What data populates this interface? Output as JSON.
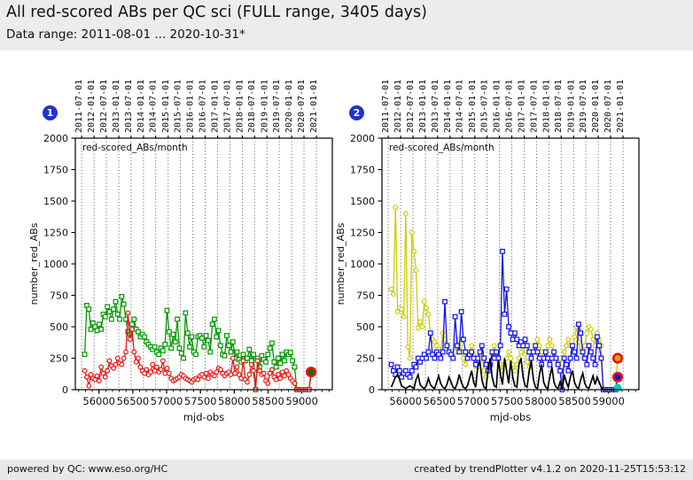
{
  "header": {
    "title": "All red-scored ABs per QC sci (FULL range, 3405 days)",
    "subtitle": "Data range: 2011-08-01 ... 2020-10-31*"
  },
  "footer": {
    "left": "powered by QC: www.eso.org/HC",
    "right": "created by trendPlotter v4.1.2 on 2020-11-25T15:53:12"
  },
  "colors": {
    "badge": "#2233cc",
    "grid": "#444444",
    "green": "#009900",
    "red": "#ee1111",
    "yellow": "#cccc00",
    "blue": "#1111ee",
    "black": "#000000",
    "cyan": "#00cccc"
  },
  "chart_data": [
    {
      "type": "line",
      "badge": "1",
      "legend": "red-scored_ABs/month",
      "xlabel": "mjd-obs",
      "ylabel": "number_red_ABs",
      "xlim": [
        55650,
        59450
      ],
      "ylim": [
        0,
        2000
      ],
      "x_ticks": [
        56000,
        56500,
        57000,
        57500,
        58000,
        58500,
        59000
      ],
      "x_minor_step": 100,
      "y_ticks": [
        0,
        250,
        500,
        750,
        1000,
        1250,
        1500,
        1750,
        2000
      ],
      "grid": "vertical-dotted-at-date-ticks",
      "legend_position": "top-left-inside",
      "date_ticks": {
        "mjd": [
          55743,
          55927,
          56109,
          56293,
          56474,
          56658,
          56839,
          57023,
          57204,
          57388,
          57570,
          57754,
          57935,
          58119,
          58300,
          58484,
          58665,
          58849,
          59031,
          59215
        ],
        "labels": [
          "2011-07-01",
          "2012-01-01",
          "2012-07-01",
          "2013-01-01",
          "2013-07-01",
          "2014-01-01",
          "2014-07-01",
          "2015-01-01",
          "2015-07-01",
          "2016-01-01",
          "2016-07-01",
          "2017-01-01",
          "2017-07-01",
          "2018-01-01",
          "2018-07-01",
          "2019-01-01",
          "2019-07-01",
          "2020-01-01",
          "2020-07-01",
          "2021-01-01"
        ]
      },
      "x": [
        55789,
        55819,
        55850,
        55880,
        55911,
        55941,
        55972,
        56002,
        56032,
        56063,
        56093,
        56124,
        56154,
        56185,
        56215,
        56246,
        56276,
        56306,
        56337,
        56367,
        56398,
        56428,
        56459,
        56489,
        56519,
        56550,
        56580,
        56611,
        56641,
        56672,
        56702,
        56732,
        56763,
        56793,
        56824,
        56854,
        56885,
        56915,
        56945,
        56976,
        57006,
        57037,
        57067,
        57098,
        57128,
        57158,
        57189,
        57219,
        57250,
        57280,
        57311,
        57341,
        57371,
        57402,
        57432,
        57463,
        57493,
        57524,
        57554,
        57584,
        57615,
        57645,
        57676,
        57706,
        57737,
        57767,
        57797,
        57828,
        57858,
        57889,
        57919,
        57950,
        57980,
        58010,
        58041,
        58071,
        58102,
        58132,
        58163,
        58193,
        58223,
        58254,
        58284,
        58315,
        58345,
        58376,
        58406,
        58436,
        58467,
        58497,
        58528,
        58558,
        58589,
        58619,
        58649,
        58680,
        58710,
        58741,
        58771,
        58802,
        58832,
        58862,
        58893,
        58923,
        58954,
        58984,
        59014,
        59045,
        59075,
        59106,
        59136
      ],
      "series": [
        {
          "name": "green",
          "color": "#009900",
          "marker": "square",
          "values": [
            280,
            670,
            640,
            480,
            530,
            500,
            470,
            520,
            480,
            600,
            580,
            660,
            620,
            560,
            640,
            700,
            600,
            560,
            740,
            680,
            560,
            460,
            440,
            520,
            560,
            480,
            460,
            420,
            440,
            420,
            380,
            360,
            340,
            320,
            340,
            300,
            280,
            330,
            310,
            360,
            630,
            460,
            330,
            440,
            380,
            560,
            330,
            290,
            250,
            610,
            450,
            340,
            420,
            300,
            280,
            420,
            430,
            410,
            340,
            430,
            390,
            300,
            520,
            560,
            420,
            470,
            350,
            280,
            270,
            430,
            350,
            300,
            380,
            250,
            300,
            240,
            220,
            280,
            230,
            250,
            320,
            230,
            280,
            0,
            250,
            180,
            270,
            240,
            220,
            280,
            330,
            370,
            220,
            180,
            250,
            210,
            280,
            230,
            300,
            280,
            295,
            230,
            180,
            0,
            0,
            0,
            0,
            0,
            0,
            0,
            140
          ]
        },
        {
          "name": "red",
          "color": "#ee1111",
          "marker": "circle",
          "values": [
            150,
            100,
            30,
            120,
            90,
            80,
            110,
            70,
            180,
            130,
            100,
            150,
            230,
            190,
            170,
            200,
            250,
            210,
            200,
            250,
            300,
            610,
            400,
            480,
            300,
            220,
            250,
            180,
            150,
            130,
            160,
            120,
            140,
            200,
            150,
            180,
            140,
            160,
            230,
            130,
            170,
            130,
            90,
            70,
            80,
            90,
            100,
            120,
            110,
            90,
            80,
            70,
            60,
            80,
            90,
            80,
            110,
            120,
            100,
            130,
            90,
            140,
            120,
            110,
            140,
            170,
            160,
            130,
            110,
            130,
            140,
            120,
            250,
            130,
            180,
            120,
            90,
            230,
            80,
            60,
            120,
            200,
            150,
            0,
            230,
            150,
            120,
            130,
            70,
            50,
            130,
            160,
            100,
            80,
            120,
            90,
            140,
            110,
            150,
            120,
            90,
            70,
            50,
            0,
            0,
            0,
            0,
            0,
            0,
            0,
            120
          ]
        }
      ],
      "end_markers": [
        {
          "x": 59136,
          "y": 140,
          "fill": "#007700",
          "ring": "#ee1111",
          "r": 4.8
        }
      ]
    },
    {
      "type": "line",
      "badge": "2",
      "legend": "red-scored_ABs/month",
      "xlabel": "mjd-obs",
      "ylabel": "number_red_ABs",
      "xlim": [
        55650,
        59450
      ],
      "ylim": [
        0,
        2000
      ],
      "x_ticks": [
        56000,
        56500,
        57000,
        57500,
        58000,
        58500,
        59000
      ],
      "x_minor_step": 100,
      "y_ticks": [
        0,
        250,
        500,
        750,
        1000,
        1250,
        1500,
        1750,
        2000
      ],
      "grid": "vertical-dotted-at-date-ticks",
      "legend_position": "top-left-inside",
      "date_ticks": {
        "mjd": [
          55743,
          55927,
          56109,
          56293,
          56474,
          56658,
          56839,
          57023,
          57204,
          57388,
          57570,
          57754,
          57935,
          58119,
          58300,
          58484,
          58665,
          58849,
          59031,
          59215
        ],
        "labels": [
          "2011-07-01",
          "2012-01-01",
          "2012-07-01",
          "2013-01-01",
          "2013-07-01",
          "2014-01-01",
          "2014-07-01",
          "2015-01-01",
          "2015-07-01",
          "2016-01-01",
          "2016-07-01",
          "2017-01-01",
          "2017-07-01",
          "2018-01-01",
          "2018-07-01",
          "2019-01-01",
          "2019-07-01",
          "2020-01-01",
          "2020-07-01",
          "2021-01-01"
        ]
      },
      "x": [
        55789,
        55819,
        55850,
        55880,
        55911,
        55941,
        55972,
        56002,
        56032,
        56063,
        56093,
        56124,
        56154,
        56185,
        56215,
        56246,
        56276,
        56306,
        56337,
        56367,
        56398,
        56428,
        56459,
        56489,
        56519,
        56550,
        56580,
        56611,
        56641,
        56672,
        56702,
        56732,
        56763,
        56793,
        56824,
        56854,
        56885,
        56915,
        56945,
        56976,
        57006,
        57037,
        57067,
        57098,
        57128,
        57158,
        57189,
        57219,
        57250,
        57280,
        57311,
        57341,
        57371,
        57402,
        57432,
        57463,
        57493,
        57524,
        57554,
        57584,
        57615,
        57645,
        57676,
        57706,
        57737,
        57767,
        57797,
        57828,
        57858,
        57889,
        57919,
        57950,
        57980,
        58010,
        58041,
        58071,
        58102,
        58132,
        58163,
        58193,
        58223,
        58254,
        58284,
        58315,
        58345,
        58376,
        58406,
        58436,
        58467,
        58497,
        58528,
        58558,
        58589,
        58619,
        58649,
        58680,
        58710,
        58741,
        58771,
        58802,
        58832,
        58862,
        58893,
        58923,
        58954,
        58984,
        59014,
        59045,
        59075,
        59106,
        59136
      ],
      "series": [
        {
          "name": "yellow",
          "color": "#cccc00",
          "marker": "circle",
          "values": [
            800,
            760,
            1450,
            620,
            650,
            640,
            580,
            1400,
            340,
            250,
            1250,
            1100,
            950,
            490,
            540,
            500,
            700,
            650,
            600,
            450,
            400,
            380,
            350,
            320,
            300,
            450,
            400,
            350,
            300,
            280,
            250,
            300,
            350,
            400,
            300,
            250,
            200,
            250,
            300,
            350,
            280,
            220,
            180,
            250,
            300,
            150,
            100,
            150,
            200,
            280,
            350,
            300,
            250,
            200,
            150,
            200,
            250,
            300,
            250,
            200,
            150,
            200,
            250,
            300,
            350,
            280,
            220,
            180,
            250,
            300,
            350,
            400,
            350,
            300,
            250,
            300,
            350,
            400,
            350,
            300,
            250,
            200,
            250,
            0,
            300,
            350,
            400,
            350,
            300,
            420,
            500,
            380,
            300,
            250,
            350,
            450,
            500,
            480,
            400,
            350,
            450,
            400,
            350,
            0,
            0,
            0,
            0,
            0,
            0,
            0,
            250
          ]
        },
        {
          "name": "blue",
          "color": "#1111ee",
          "marker": "square",
          "values": [
            200,
            150,
            120,
            180,
            150,
            100,
            130,
            150,
            120,
            100,
            150,
            200,
            180,
            250,
            220,
            250,
            280,
            250,
            300,
            450,
            280,
            250,
            300,
            280,
            250,
            300,
            700,
            350,
            300,
            280,
            250,
            580,
            350,
            300,
            620,
            400,
            300,
            250,
            280,
            300,
            250,
            200,
            250,
            300,
            350,
            250,
            200,
            150,
            200,
            300,
            250,
            300,
            250,
            350,
            1100,
            600,
            800,
            500,
            450,
            400,
            450,
            400,
            350,
            380,
            350,
            400,
            350,
            300,
            250,
            300,
            350,
            300,
            250,
            200,
            250,
            300,
            250,
            200,
            250,
            300,
            250,
            200,
            150,
            0,
            250,
            200,
            150,
            250,
            350,
            300,
            250,
            520,
            450,
            300,
            250,
            200,
            350,
            300,
            250,
            200,
            420,
            350,
            250,
            0,
            0,
            0,
            0,
            0,
            0,
            0,
            100
          ]
        },
        {
          "name": "black",
          "color": "#000000",
          "marker": "none",
          "values": [
            20,
            60,
            100,
            120,
            80,
            30,
            20,
            10,
            20,
            30,
            20,
            10,
            80,
            120,
            40,
            20,
            10,
            30,
            90,
            40,
            20,
            10,
            60,
            110,
            50,
            20,
            10,
            40,
            100,
            60,
            20,
            10,
            50,
            120,
            60,
            20,
            10,
            30,
            90,
            150,
            60,
            20,
            180,
            230,
            80,
            20,
            10,
            150,
            250,
            100,
            30,
            20,
            240,
            120,
            40,
            250,
            150,
            50,
            230,
            100,
            30,
            20,
            200,
            250,
            100,
            30,
            20,
            150,
            230,
            80,
            20,
            10,
            120,
            200,
            60,
            20,
            10,
            100,
            180,
            60,
            20,
            10,
            60,
            0,
            120,
            60,
            20,
            100,
            150,
            60,
            20,
            10,
            80,
            130,
            50,
            20,
            10,
            60,
            110,
            40,
            100,
            60,
            20,
            0,
            0,
            0,
            0,
            0,
            0,
            0,
            20
          ]
        }
      ],
      "end_markers": [
        {
          "x": 59136,
          "y": 250,
          "fill": "#ccaa00",
          "ring": "#ee1111",
          "r": 4.8
        },
        {
          "x": 59136,
          "y": 100,
          "fill": "#1111cc",
          "ring": "#ee1111",
          "r": 4.8
        },
        {
          "x": 59136,
          "y": 15,
          "fill": "#00cccc",
          "ring": "#00cccc",
          "r": 3.2
        }
      ]
    }
  ]
}
